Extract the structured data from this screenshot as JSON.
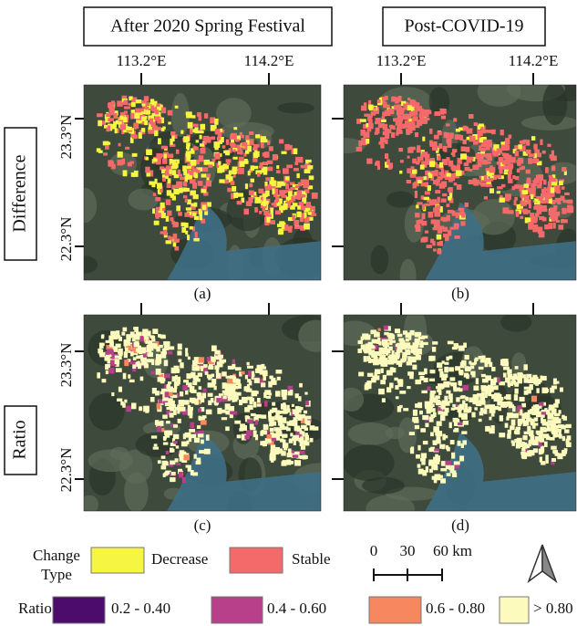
{
  "columns": [
    "After 2020 Spring Festival",
    "Post-COVID-19"
  ],
  "rows": [
    "Difference",
    "Ratio"
  ],
  "lon_ticks": [
    "113.2°E",
    "114.2°E"
  ],
  "lat_ticks": [
    "23.3°N",
    "22.3°N"
  ],
  "panel_labels": [
    "(a)",
    "(b)",
    "(c)",
    "(d)"
  ],
  "legend": {
    "change_type": {
      "title": [
        "Change",
        "Type"
      ],
      "items": [
        {
          "label": "Decrease",
          "color": "#f5f542"
        },
        {
          "label": "Stable",
          "color": "#f46a6a"
        }
      ]
    },
    "ratio": {
      "title": "Ratio",
      "items": [
        {
          "label": "0.2 - 0.40",
          "color": "#4b0c6b"
        },
        {
          "label": "0.4 - 0.60",
          "color": "#b83f8a"
        },
        {
          "label": "0.6 - 0.80",
          "color": "#f7875e"
        },
        {
          "label": "> 0.80",
          "color": "#fcfbbd"
        }
      ]
    }
  },
  "scale_bar": [
    "0",
    "30",
    "60 km"
  ]
}
